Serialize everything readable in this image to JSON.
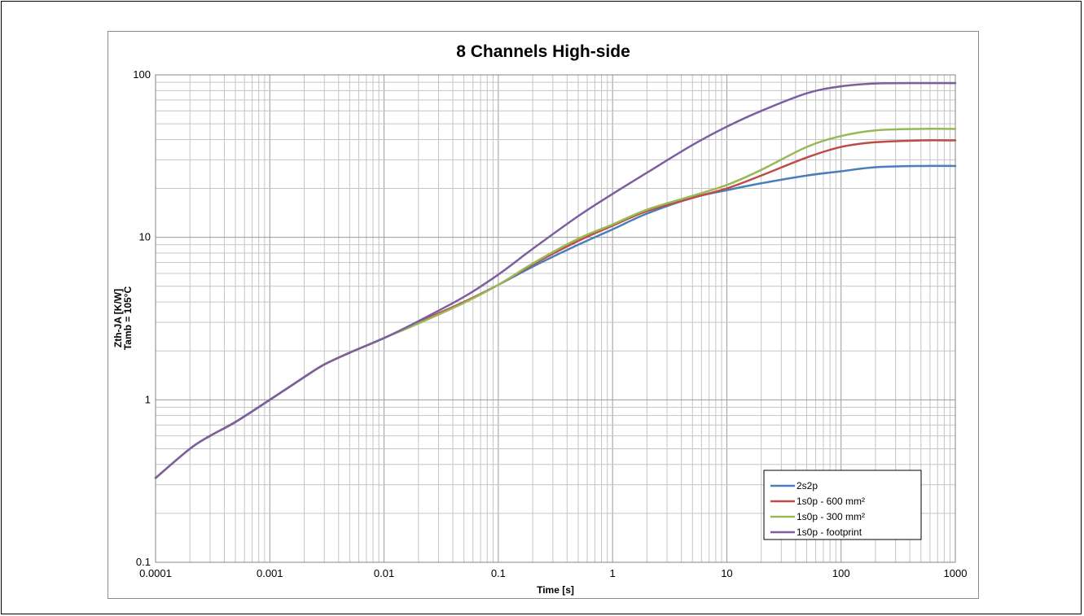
{
  "chart_data": {
    "type": "line",
    "title": "8 Channels High-side",
    "xlabel": "Time [s]",
    "ylabel": [
      "Zth-JA [K/W]",
      "Tamb = 105°C"
    ],
    "x_scale": "log",
    "y_scale": "log",
    "xlim": [
      0.0001,
      1000
    ],
    "ylim": [
      0.1,
      100
    ],
    "x_ticks": [
      "0.0001",
      "0.001",
      "0.01",
      "0.1",
      "1",
      "10",
      "100",
      "1000"
    ],
    "y_ticks": [
      "0.1",
      "1",
      "10",
      "100"
    ],
    "grid": true,
    "legend_position": "bottom-right",
    "series": [
      {
        "name": "2s2p",
        "color": "#4a7ebb",
        "x": [
          0.0001,
          0.0002,
          0.0003,
          0.0005,
          0.001,
          0.002,
          0.003,
          0.005,
          0.01,
          0.02,
          0.05,
          0.1,
          0.2,
          0.5,
          1,
          2,
          5,
          10,
          20,
          50,
          100,
          200,
          500,
          1000
        ],
        "y": [
          0.33,
          0.5,
          0.6,
          0.73,
          1.0,
          1.38,
          1.65,
          1.95,
          2.4,
          3.0,
          4.0,
          5.1,
          6.6,
          9.0,
          11.2,
          14.0,
          17.5,
          19.5,
          21.5,
          24.0,
          25.5,
          27.0,
          27.5,
          27.5
        ]
      },
      {
        "name": "1s0p - 600 mm²",
        "color": "#be4b48",
        "x": [
          0.0001,
          0.0002,
          0.0003,
          0.0005,
          0.001,
          0.002,
          0.003,
          0.005,
          0.01,
          0.02,
          0.05,
          0.1,
          0.2,
          0.5,
          1,
          2,
          5,
          10,
          20,
          50,
          100,
          200,
          500,
          1000
        ],
        "y": [
          0.33,
          0.5,
          0.6,
          0.73,
          1.0,
          1.38,
          1.65,
          1.95,
          2.4,
          3.0,
          4.0,
          5.1,
          6.8,
          9.5,
          11.8,
          14.5,
          17.5,
          20.0,
          24.0,
          31.0,
          36.0,
          38.5,
          39.5,
          39.5
        ]
      },
      {
        "name": "1s0p - 300 mm²",
        "color": "#98b954",
        "x": [
          0.0001,
          0.0002,
          0.0003,
          0.0005,
          0.001,
          0.002,
          0.003,
          0.005,
          0.01,
          0.02,
          0.05,
          0.1,
          0.2,
          0.5,
          1,
          2,
          5,
          10,
          20,
          50,
          100,
          200,
          500,
          1000
        ],
        "y": [
          0.33,
          0.5,
          0.6,
          0.73,
          1.0,
          1.38,
          1.65,
          1.95,
          2.4,
          2.95,
          3.95,
          5.1,
          6.9,
          9.8,
          12.0,
          14.8,
          18.0,
          21.0,
          26.0,
          36.0,
          42.0,
          45.5,
          46.5,
          46.5
        ]
      },
      {
        "name": "1s0p - footprint",
        "color": "#7d5fa0",
        "x": [
          0.0001,
          0.0002,
          0.0003,
          0.0005,
          0.001,
          0.002,
          0.003,
          0.005,
          0.01,
          0.02,
          0.05,
          0.1,
          0.2,
          0.5,
          1,
          2,
          5,
          10,
          20,
          50,
          100,
          200,
          500,
          1000
        ],
        "y": [
          0.33,
          0.5,
          0.6,
          0.73,
          1.0,
          1.38,
          1.65,
          1.95,
          2.4,
          3.05,
          4.3,
          5.9,
          8.5,
          13.5,
          18.5,
          25.0,
          37.0,
          48.0,
          60.0,
          77.0,
          85.0,
          88.5,
          89.0,
          89.0
        ]
      }
    ]
  }
}
